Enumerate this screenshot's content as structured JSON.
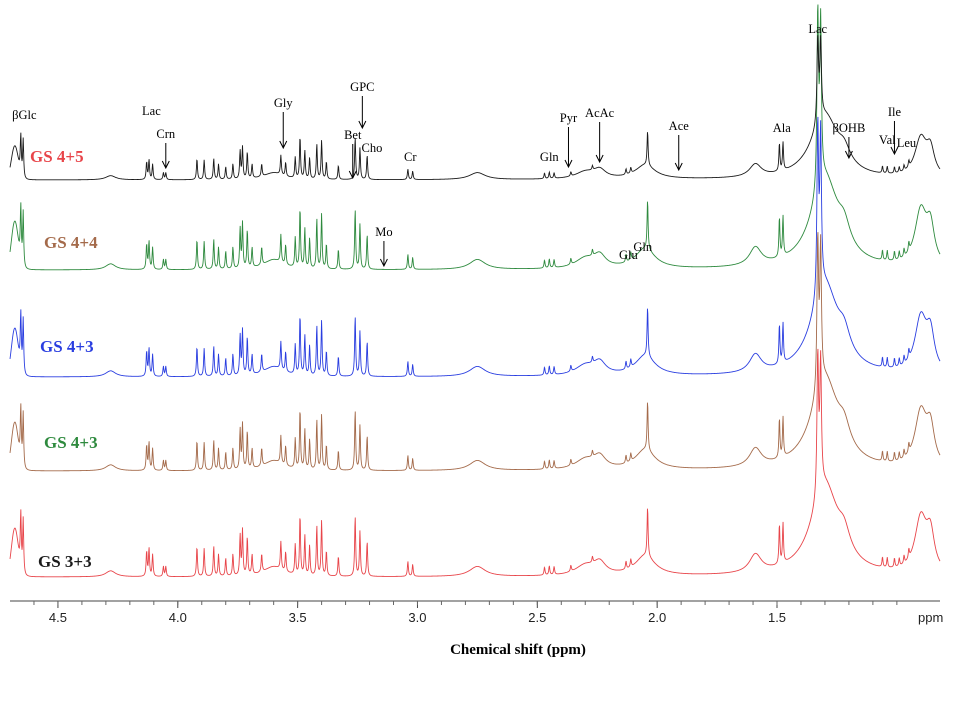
{
  "chart_data": {
    "type": "line",
    "title": "",
    "xlabel": "Chemical shift (ppm)",
    "x_unit_label": "ppm",
    "xlim": [
      4.7,
      0.82
    ],
    "x_reversed": true,
    "x_ticks": [
      {
        "value": 4.5,
        "label": "4.5"
      },
      {
        "value": 4.0,
        "label": "4.0"
      },
      {
        "value": 3.5,
        "label": "3.5"
      },
      {
        "value": 3.0,
        "label": "3.0"
      },
      {
        "value": 2.5,
        "label": "2.5"
      },
      {
        "value": 2.0,
        "label": "2.0"
      },
      {
        "value": 1.5,
        "label": "1.5"
      }
    ],
    "series": [
      {
        "name": "GS 4+5",
        "color": "#e8454a"
      },
      {
        "name": "GS 4+4",
        "color": "#a46a4a"
      },
      {
        "name": "GS 4+3",
        "color": "#2a3ee0"
      },
      {
        "name": "GS 4+3",
        "color": "#2e8a3e"
      },
      {
        "name": "GS 3+3",
        "color": "#1a1a1a"
      }
    ],
    "annotations": [
      {
        "text": "βGlc",
        "x": 4.64,
        "arrow": false
      },
      {
        "text": "Lac",
        "x": 4.11,
        "arrow": false
      },
      {
        "text": "Crn",
        "x": 4.05,
        "arrow": true
      },
      {
        "text": "Gly",
        "x": 3.56,
        "arrow": true
      },
      {
        "text": "GPC",
        "x": 3.23,
        "arrow": true
      },
      {
        "text": "Bet",
        "x": 3.27,
        "arrow": true
      },
      {
        "text": "Cho",
        "x": 3.19,
        "arrow": false
      },
      {
        "text": "Cr",
        "x": 3.03,
        "arrow": false
      },
      {
        "text": "Mo",
        "x": 3.14,
        "arrow": true
      },
      {
        "text": "Gln",
        "x": 2.45,
        "arrow": false
      },
      {
        "text": "Pyr",
        "x": 2.37,
        "arrow": true
      },
      {
        "text": "AcAc",
        "x": 2.24,
        "arrow": true
      },
      {
        "text": "Glu",
        "x": 2.12,
        "arrow": false
      },
      {
        "text": "Gln",
        "x": 2.06,
        "arrow": false
      },
      {
        "text": "Ace",
        "x": 1.91,
        "arrow": true
      },
      {
        "text": "Ala",
        "x": 1.48,
        "arrow": false
      },
      {
        "text": "Lac",
        "x": 1.33,
        "arrow": false
      },
      {
        "text": "βOHB",
        "x": 1.2,
        "arrow": true
      },
      {
        "text": "Val",
        "x": 1.04,
        "arrow": false
      },
      {
        "text": "Ile",
        "x": 1.01,
        "arrow": true
      },
      {
        "text": "Leu",
        "x": 0.96,
        "arrow": false
      }
    ]
  }
}
